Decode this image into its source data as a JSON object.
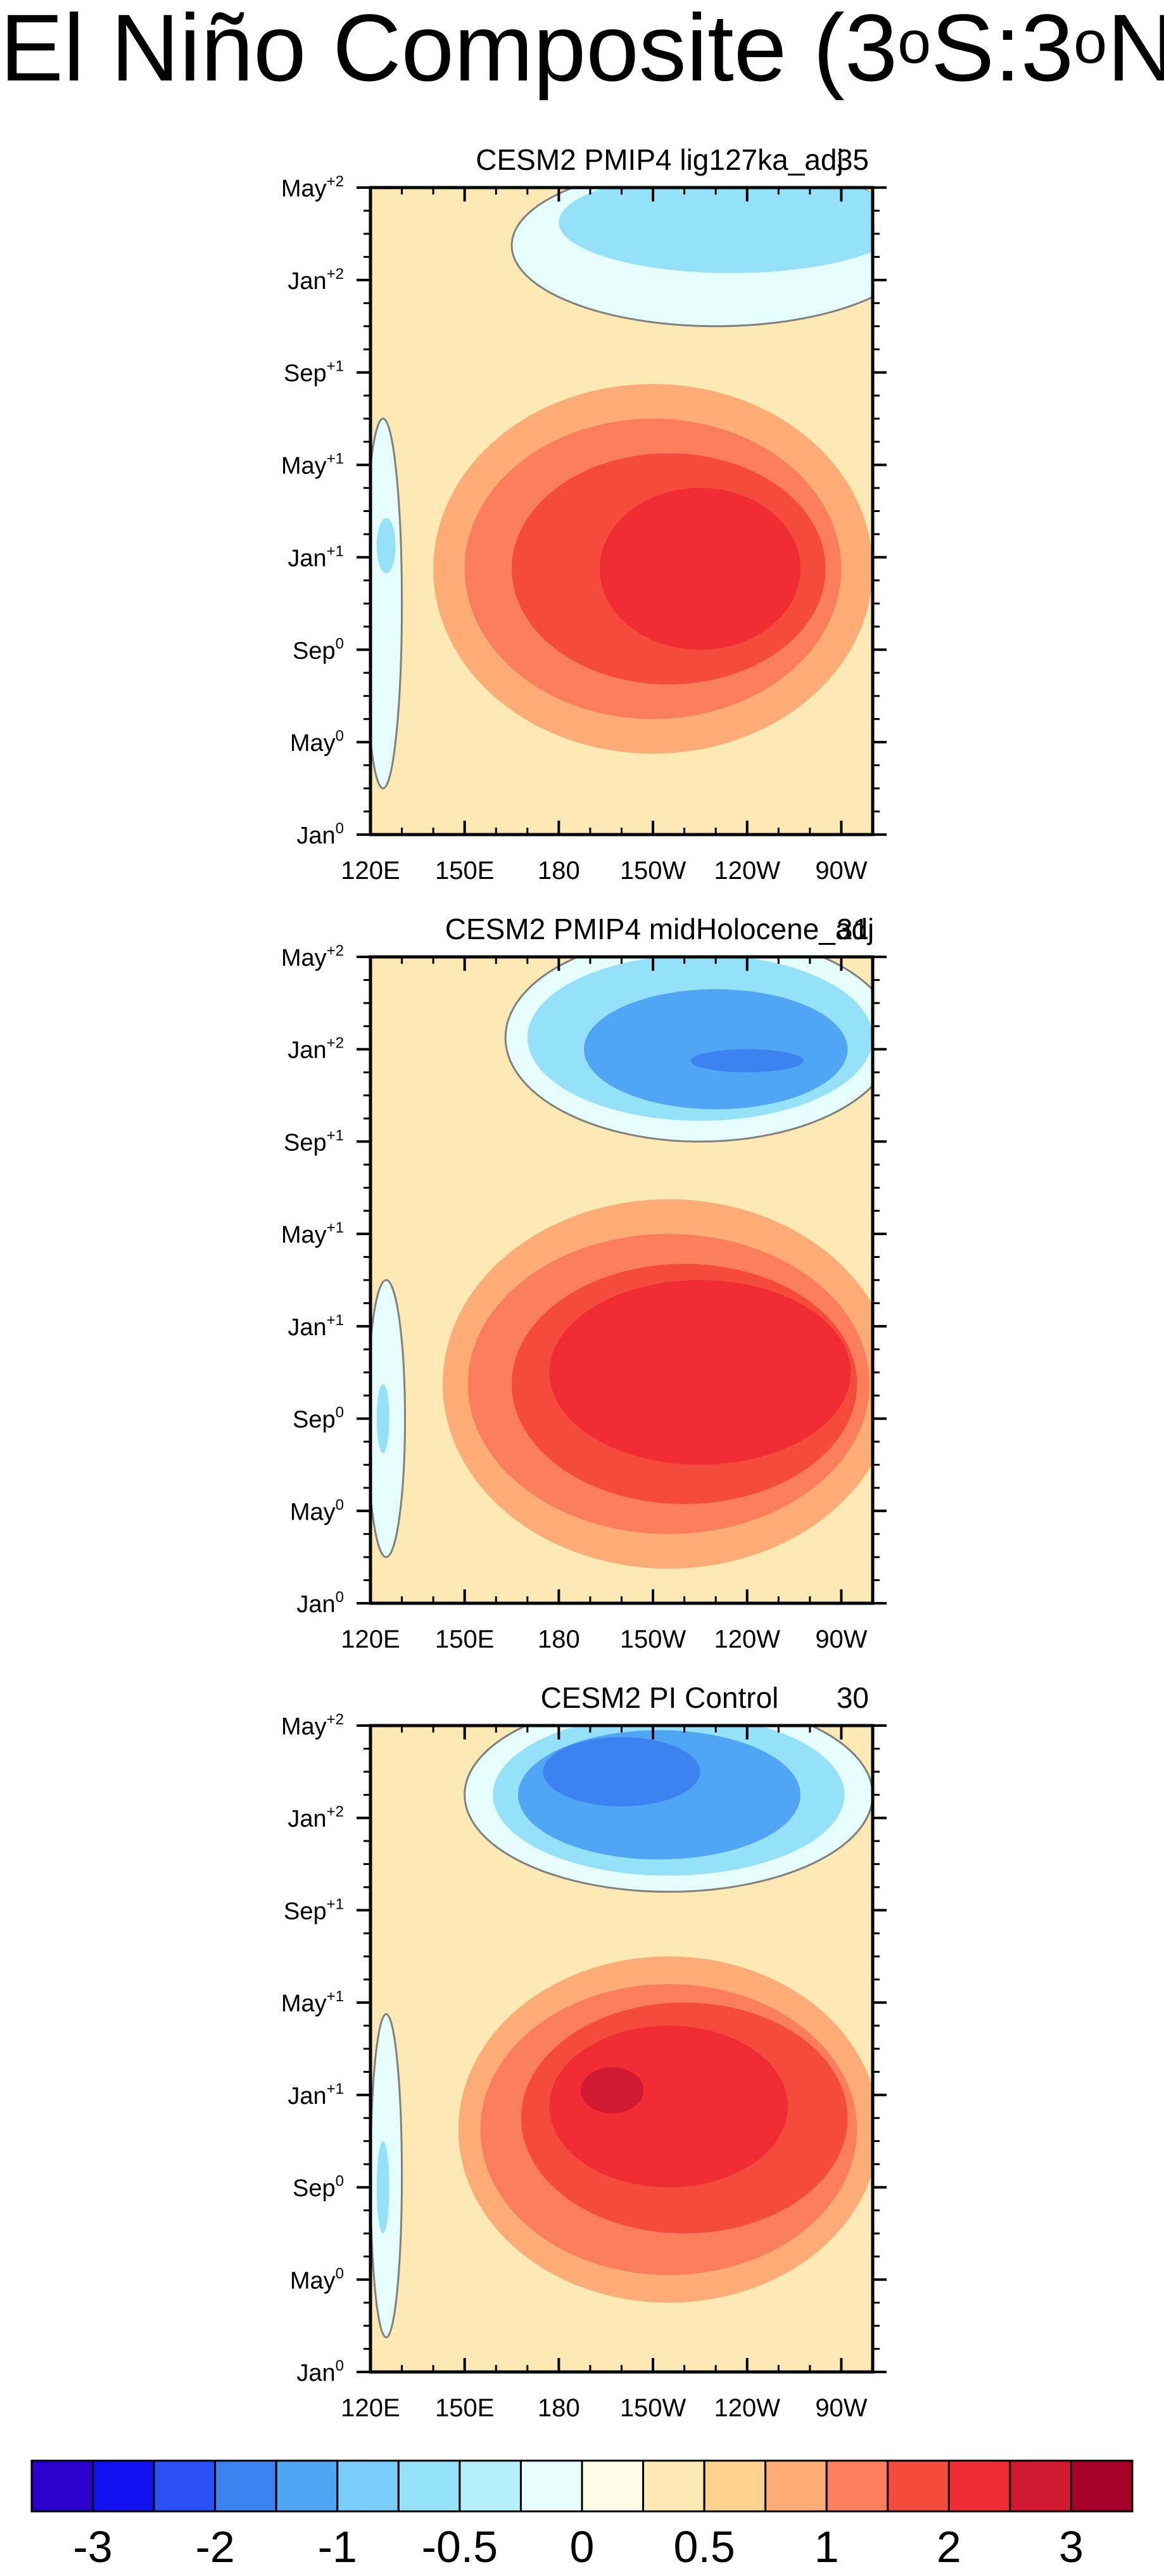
{
  "title": {
    "prefix": "El Niño Composite (3",
    "sup1": "o",
    "mid": "S:3",
    "sup2": "o",
    "suffix": "N)"
  },
  "chart_data": [
    {
      "type": "heatmap",
      "panel_title": "CESM2 PMIP4 lig127ka_adj",
      "count_label": "35",
      "x_ticks": [
        "120E",
        "150E",
        "180",
        "150W",
        "120W",
        "90W"
      ],
      "x_tick_values": [
        120,
        150,
        180,
        210,
        240,
        270
      ],
      "xlim": [
        120,
        280
      ],
      "y_ticks": [
        {
          "month": "Jan",
          "year": "0"
        },
        {
          "month": "May",
          "year": "0"
        },
        {
          "month": "Sep",
          "year": "0"
        },
        {
          "month": "Jan",
          "year": "+1"
        },
        {
          "month": "May",
          "year": "+1"
        },
        {
          "month": "Sep",
          "year": "+1"
        },
        {
          "month": "Jan",
          "year": "+2"
        },
        {
          "month": "May",
          "year": "+2"
        }
      ],
      "y_tick_values": [
        0,
        4,
        8,
        12,
        16,
        20,
        24,
        28
      ],
      "ylim": [
        0,
        28
      ],
      "background_level": 0.25,
      "features": [
        {
          "cx": 210,
          "cy": 11.5,
          "rx": 70,
          "ry": 8,
          "v": 0.75
        },
        {
          "cx": 210,
          "cy": 11.5,
          "rx": 60,
          "ry": 6.5,
          "v": 1.25
        },
        {
          "cx": 215,
          "cy": 11.5,
          "rx": 50,
          "ry": 5,
          "v": 1.75
        },
        {
          "cx": 225,
          "cy": 11.5,
          "rx": 32,
          "ry": 3.5,
          "v": 2.25
        },
        {
          "cx": 230,
          "cy": 25.5,
          "rx": 65,
          "ry": 3.5,
          "v": -0.25
        },
        {
          "cx": 235,
          "cy": 26.5,
          "rx": 55,
          "ry": 2.2,
          "v": -0.75
        },
        {
          "cx": 124,
          "cy": 10,
          "rx": 6,
          "ry": 8,
          "v": -0.25
        },
        {
          "cx": 125,
          "cy": 12.5,
          "rx": 3,
          "ry": 1.2,
          "v": -0.75
        }
      ]
    },
    {
      "type": "heatmap",
      "panel_title": "CESM2 PMIP4 midHolocene_adj",
      "count_label": "31",
      "x_ticks": [
        "120E",
        "150E",
        "180",
        "150W",
        "120W",
        "90W"
      ],
      "x_tick_values": [
        120,
        150,
        180,
        210,
        240,
        270
      ],
      "xlim": [
        120,
        280
      ],
      "y_ticks": [
        {
          "month": "Jan",
          "year": "0"
        },
        {
          "month": "May",
          "year": "0"
        },
        {
          "month": "Sep",
          "year": "0"
        },
        {
          "month": "Jan",
          "year": "+1"
        },
        {
          "month": "May",
          "year": "+1"
        },
        {
          "month": "Sep",
          "year": "+1"
        },
        {
          "month": "Jan",
          "year": "+2"
        },
        {
          "month": "May",
          "year": "+2"
        }
      ],
      "y_tick_values": [
        0,
        4,
        8,
        12,
        16,
        20,
        24,
        28
      ],
      "ylim": [
        0,
        28
      ],
      "background_level": 0.25,
      "features": [
        {
          "cx": 215,
          "cy": 9.5,
          "rx": 72,
          "ry": 8,
          "v": 0.75
        },
        {
          "cx": 215,
          "cy": 9.5,
          "rx": 64,
          "ry": 6.5,
          "v": 1.25
        },
        {
          "cx": 220,
          "cy": 9.5,
          "rx": 55,
          "ry": 5.2,
          "v": 1.75
        },
        {
          "cx": 225,
          "cy": 10,
          "rx": 48,
          "ry": 4,
          "v": 2.25
        },
        {
          "cx": 225,
          "cy": 24.5,
          "rx": 62,
          "ry": 4.5,
          "v": -0.25
        },
        {
          "cx": 225,
          "cy": 24.5,
          "rx": 55,
          "ry": 3.6,
          "v": -0.75
        },
        {
          "cx": 230,
          "cy": 24,
          "rx": 42,
          "ry": 2.6,
          "v": -1.25
        },
        {
          "cx": 240,
          "cy": 23.5,
          "rx": 18,
          "ry": 0.5,
          "v": -1.75
        },
        {
          "cx": 125,
          "cy": 8,
          "rx": 6,
          "ry": 6,
          "v": -0.25
        },
        {
          "cx": 124,
          "cy": 8,
          "rx": 2,
          "ry": 1.5,
          "v": -0.75
        }
      ]
    },
    {
      "type": "heatmap",
      "panel_title": "CESM2 PI Control",
      "count_label": "30",
      "x_ticks": [
        "120E",
        "150E",
        "180",
        "150W",
        "120W",
        "90W"
      ],
      "x_tick_values": [
        120,
        150,
        180,
        210,
        240,
        270
      ],
      "xlim": [
        120,
        280
      ],
      "y_ticks": [
        {
          "month": "Jan",
          "year": "0"
        },
        {
          "month": "May",
          "year": "0"
        },
        {
          "month": "Sep",
          "year": "0"
        },
        {
          "month": "Jan",
          "year": "+1"
        },
        {
          "month": "May",
          "year": "+1"
        },
        {
          "month": "Sep",
          "year": "+1"
        },
        {
          "month": "Jan",
          "year": "+2"
        },
        {
          "month": "May",
          "year": "+2"
        }
      ],
      "y_tick_values": [
        0,
        4,
        8,
        12,
        16,
        20,
        24,
        28
      ],
      "ylim": [
        0,
        28
      ],
      "background_level": 0.25,
      "features": [
        {
          "cx": 215,
          "cy": 10.5,
          "rx": 67,
          "ry": 7.5,
          "v": 0.75
        },
        {
          "cx": 215,
          "cy": 10.5,
          "rx": 60,
          "ry": 6.3,
          "v": 1.25
        },
        {
          "cx": 220,
          "cy": 11,
          "rx": 52,
          "ry": 5,
          "v": 1.75
        },
        {
          "cx": 215,
          "cy": 11.5,
          "rx": 38,
          "ry": 3.5,
          "v": 2.25
        },
        {
          "cx": 197,
          "cy": 12.2,
          "rx": 10,
          "ry": 1,
          "v": 2.75
        },
        {
          "cx": 215,
          "cy": 25,
          "rx": 65,
          "ry": 4.2,
          "v": -0.25
        },
        {
          "cx": 215,
          "cy": 25,
          "rx": 56,
          "ry": 3.5,
          "v": -0.75
        },
        {
          "cx": 212,
          "cy": 25,
          "rx": 45,
          "ry": 2.8,
          "v": -1.25
        },
        {
          "cx": 200,
          "cy": 26,
          "rx": 25,
          "ry": 1.5,
          "v": -1.75
        },
        {
          "cx": 125,
          "cy": 8.5,
          "rx": 5,
          "ry": 7,
          "v": -0.25
        },
        {
          "cx": 124,
          "cy": 8,
          "rx": 2,
          "ry": 2,
          "v": -0.75
        }
      ]
    }
  ],
  "colorbar": {
    "boundaries": [
      -3.5,
      -3,
      -2.5,
      -2,
      -1.5,
      -1,
      -0.75,
      -0.5,
      -0.25,
      0,
      0.25,
      0.5,
      0.75,
      1,
      1.5,
      2,
      2.5,
      3,
      3.5
    ],
    "colors": [
      "#2b00cc",
      "#1010f0",
      "#2850f5",
      "#3c82f0",
      "#50a5f5",
      "#78cdfa",
      "#96e1fa",
      "#b4f0fa",
      "#e6fdfd",
      "#fffde6",
      "#fde9b4",
      "#fdd291",
      "#fdac78",
      "#fa7d5c",
      "#f54b3c",
      "#f02d32",
      "#d21932",
      "#a50028"
    ],
    "labels": [
      "-3",
      "-2",
      "-1",
      "-0.5",
      "0",
      "0.5",
      "1",
      "2",
      "3"
    ],
    "label_values": [
      -3,
      -2,
      -1,
      -0.5,
      0,
      0.5,
      1,
      2,
      3
    ]
  }
}
